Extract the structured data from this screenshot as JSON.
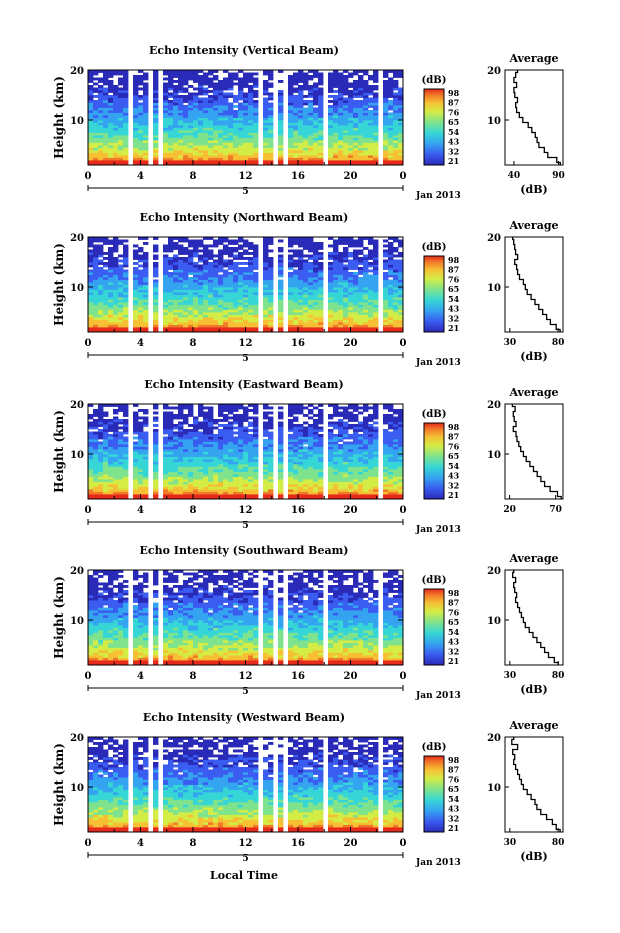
{
  "figure": {
    "time_axis_label": "Local Time",
    "date_label": "Jan 2013",
    "day_label": "5",
    "units_label": "(dB)",
    "height_label": "Height (km)",
    "average_title": "Average",
    "colormap": [
      "#2a2ab8",
      "#3a5cf0",
      "#35a4f0",
      "#37d6d6",
      "#7ee38c",
      "#d4ec46",
      "#f6bf34",
      "#f07a28",
      "#e62a1c"
    ]
  },
  "chart_data": [
    {
      "type": "heatmap",
      "title": "Echo Intensity (Vertical Beam)",
      "xlabel": "",
      "ylabel": "Height (km)",
      "x_ticks": [
        "0",
        "4",
        "8",
        "12",
        "16",
        "20",
        "0"
      ],
      "y_ticks": [
        "20",
        "10"
      ],
      "xlim": [
        0,
        24
      ],
      "ylim": [
        1,
        20
      ],
      "colorbar": {
        "label": "(dB)",
        "ticks": [
          "98",
          "87",
          "76",
          "65",
          "54",
          "43",
          "32",
          "21"
        ]
      },
      "gaps_hours": [
        [
          3.1,
          3.6
        ],
        [
          4.5,
          4.8
        ],
        [
          5.3,
          5.6
        ],
        [
          12.9,
          13.4
        ],
        [
          14.1,
          14.3
        ],
        [
          14.9,
          15.2
        ],
        [
          16.6,
          16.8
        ],
        [
          17.9,
          18.2
        ],
        [
          21.2,
          21.5
        ],
        [
          22.1,
          22.3
        ],
        [
          23.2,
          23.4
        ]
      ],
      "average": {
        "xlabel": "(dB)",
        "x_ticks": [
          "40",
          "90"
        ],
        "xlim": [
          30,
          95
        ],
        "y_ticks": [
          "20",
          "10"
        ],
        "height_km": [
          1,
          2,
          3,
          4,
          5,
          6,
          7,
          8,
          9,
          10,
          11,
          12,
          13,
          14,
          15,
          16,
          17,
          18,
          19,
          20
        ],
        "values_db": [
          92,
          88,
          78,
          74,
          68,
          66,
          64,
          60,
          56,
          50,
          46,
          43,
          42,
          44,
          41,
          40,
          43,
          40,
          42,
          44
        ]
      }
    },
    {
      "type": "heatmap",
      "title": "Echo Intensity (Northward Beam)",
      "xlabel": "",
      "ylabel": "Height (km)",
      "x_ticks": [
        "0",
        "4",
        "8",
        "12",
        "16",
        "20",
        "0"
      ],
      "y_ticks": [
        "20",
        "10"
      ],
      "xlim": [
        0,
        24
      ],
      "ylim": [
        1,
        20
      ],
      "colorbar": {
        "label": "(dB)",
        "ticks": [
          "98",
          "87",
          "76",
          "65",
          "54",
          "43",
          "32",
          "21"
        ]
      },
      "gaps_hours": [
        [
          3.1,
          3.6
        ],
        [
          4.5,
          4.8
        ],
        [
          5.3,
          5.6
        ],
        [
          12.9,
          13.4
        ],
        [
          14.1,
          14.3
        ],
        [
          14.9,
          15.2
        ],
        [
          16.6,
          16.8
        ],
        [
          17.9,
          18.2
        ],
        [
          21.2,
          21.5
        ],
        [
          22.1,
          22.3
        ],
        [
          23.2,
          23.4
        ]
      ],
      "average": {
        "xlabel": "(dB)",
        "x_ticks": [
          "30",
          "80"
        ],
        "xlim": [
          25,
          85
        ],
        "y_ticks": [
          "20",
          "10"
        ],
        "height_km": [
          1,
          2,
          3,
          4,
          5,
          6,
          7,
          8,
          9,
          10,
          11,
          12,
          13,
          14,
          15,
          16,
          17,
          18,
          19,
          20
        ],
        "values_db": [
          82,
          78,
          72,
          68,
          64,
          60,
          56,
          52,
          48,
          46,
          44,
          40,
          38,
          37,
          35,
          38,
          36,
          35,
          34,
          33
        ]
      }
    },
    {
      "type": "heatmap",
      "title": "Echo Intensity (Eastward Beam)",
      "xlabel": "",
      "ylabel": "Height (km)",
      "x_ticks": [
        "0",
        "4",
        "8",
        "12",
        "16",
        "20",
        "0"
      ],
      "y_ticks": [
        "20",
        "10"
      ],
      "xlim": [
        0,
        24
      ],
      "ylim": [
        1,
        20
      ],
      "colorbar": {
        "label": "(dB)",
        "ticks": [
          "98",
          "87",
          "76",
          "65",
          "54",
          "43",
          "32",
          "21"
        ]
      },
      "gaps_hours": [
        [
          3.1,
          3.6
        ],
        [
          4.5,
          4.8
        ],
        [
          5.3,
          5.6
        ],
        [
          12.9,
          13.4
        ],
        [
          14.1,
          14.3
        ],
        [
          14.9,
          15.2
        ],
        [
          16.6,
          16.8
        ],
        [
          17.9,
          18.2
        ],
        [
          21.2,
          21.5
        ],
        [
          22.1,
          22.3
        ],
        [
          23.2,
          23.4
        ]
      ],
      "average": {
        "xlabel": "",
        "x_ticks": [
          "20",
          "70"
        ],
        "xlim": [
          15,
          78
        ],
        "y_ticks": [
          "20",
          "10"
        ],
        "height_km": [
          1,
          2,
          3,
          4,
          5,
          6,
          7,
          8,
          9,
          10,
          11,
          12,
          13,
          14,
          15,
          16,
          17,
          18,
          19,
          20
        ],
        "values_db": [
          76,
          72,
          64,
          58,
          54,
          50,
          46,
          42,
          38,
          35,
          32,
          30,
          28,
          27,
          24,
          27,
          25,
          24,
          26,
          23
        ]
      }
    },
    {
      "type": "heatmap",
      "title": "Echo Intensity (Southward Beam)",
      "xlabel": "",
      "ylabel": "Height (km)",
      "x_ticks": [
        "0",
        "4",
        "8",
        "12",
        "16",
        "20",
        "0"
      ],
      "y_ticks": [
        "20",
        "10"
      ],
      "xlim": [
        0,
        24
      ],
      "ylim": [
        1,
        20
      ],
      "colorbar": {
        "label": "(dB)",
        "ticks": [
          "98",
          "87",
          "76",
          "65",
          "54",
          "43",
          "32",
          "21"
        ]
      },
      "gaps_hours": [
        [
          3.1,
          3.6
        ],
        [
          4.5,
          4.8
        ],
        [
          5.3,
          5.6
        ],
        [
          12.9,
          13.4
        ],
        [
          14.1,
          14.3
        ],
        [
          14.9,
          15.2
        ],
        [
          16.6,
          16.8
        ],
        [
          17.9,
          18.2
        ],
        [
          21.2,
          21.5
        ],
        [
          22.1,
          22.3
        ],
        [
          23.2,
          23.4
        ]
      ],
      "average": {
        "xlabel": "(dB)",
        "x_ticks": [
          "30",
          "80"
        ],
        "xlim": [
          25,
          85
        ],
        "y_ticks": [
          "20",
          "10"
        ],
        "height_km": [
          1,
          2,
          3,
          4,
          5,
          6,
          7,
          8,
          9,
          10,
          11,
          12,
          13,
          14,
          15,
          16,
          17,
          18,
          19,
          20
        ],
        "values_db": [
          80,
          76,
          70,
          66,
          62,
          58,
          54,
          50,
          46,
          44,
          42,
          40,
          38,
          36,
          37,
          35,
          34,
          36,
          33,
          34
        ]
      }
    },
    {
      "type": "heatmap",
      "title": "Echo Intensity (Westward Beam)",
      "xlabel": "Local Time",
      "ylabel": "Height (km)",
      "x_ticks": [
        "0",
        "4",
        "8",
        "12",
        "16",
        "20",
        "0"
      ],
      "y_ticks": [
        "20",
        "10"
      ],
      "xlim": [
        0,
        24
      ],
      "ylim": [
        1,
        20
      ],
      "colorbar": {
        "label": "(dB)",
        "ticks": [
          "98",
          "87",
          "76",
          "65",
          "54",
          "43",
          "32",
          "21"
        ]
      },
      "gaps_hours": [
        [
          3.1,
          3.6
        ],
        [
          4.5,
          4.8
        ],
        [
          5.3,
          5.6
        ],
        [
          12.9,
          13.4
        ],
        [
          14.1,
          14.3
        ],
        [
          14.9,
          15.2
        ],
        [
          16.6,
          16.8
        ],
        [
          17.9,
          18.2
        ],
        [
          21.2,
          21.5
        ],
        [
          22.1,
          22.3
        ],
        [
          23.2,
          23.4
        ]
      ],
      "average": {
        "xlabel": "(dB)",
        "x_ticks": [
          "30",
          "80"
        ],
        "xlim": [
          25,
          85
        ],
        "y_ticks": [
          "20",
          "10"
        ],
        "height_km": [
          1,
          2,
          3,
          4,
          5,
          6,
          7,
          8,
          9,
          10,
          11,
          12,
          13,
          14,
          15,
          16,
          17,
          18,
          19,
          20
        ],
        "values_db": [
          82,
          78,
          74,
          68,
          62,
          58,
          56,
          52,
          48,
          44,
          42,
          40,
          38,
          36,
          34,
          35,
          33,
          38,
          32,
          34
        ]
      }
    }
  ]
}
